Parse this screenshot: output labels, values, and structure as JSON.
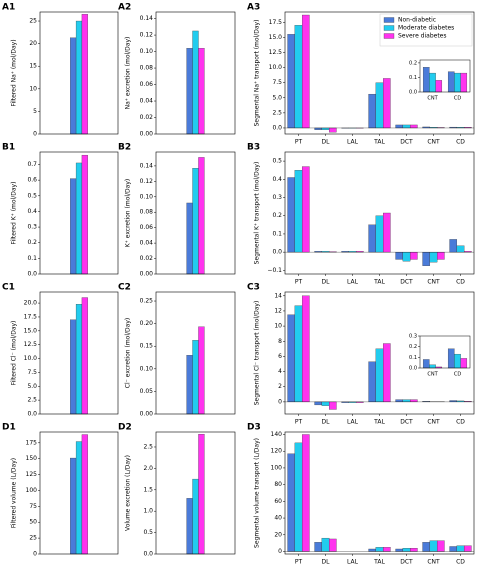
{
  "chart_data": [
    {
      "type": "bar",
      "panel_label": "A1",
      "ylabel": "Filtered Na⁺ (mol/Day)",
      "ylim": [
        0,
        27
      ],
      "yticks": [
        0,
        5,
        10,
        15,
        20,
        25
      ],
      "series": [
        {
          "color": "#4a7bd9",
          "values": [
            21.3
          ]
        },
        {
          "color": "#22ccee",
          "values": [
            25
          ]
        },
        {
          "color": "#ff33ee",
          "values": [
            26.5
          ]
        }
      ]
    },
    {
      "type": "bar",
      "panel_label": "A2",
      "ylabel": "Na⁺ excretion (mol/Day)",
      "ylim": [
        0,
        0.148
      ],
      "yticks": [
        {
          "value": 0,
          "label": "0.00"
        },
        {
          "value": 0.02,
          "label": "0.02"
        },
        {
          "value": 0.04,
          "label": "0.04"
        },
        {
          "value": 0.06,
          "label": "0.06"
        },
        {
          "value": 0.08,
          "label": "0.08"
        },
        {
          "value": 0.1,
          "label": "0.10"
        },
        {
          "value": 0.12,
          "label": "0.12"
        },
        {
          "value": 0.14,
          "label": "0.14"
        }
      ],
      "series": [
        {
          "color": "#4a7bd9",
          "values": [
            0.104
          ]
        },
        {
          "color": "#22ccee",
          "values": [
            0.125
          ]
        },
        {
          "color": "#ff33ee",
          "values": [
            0.104
          ]
        }
      ]
    },
    {
      "type": "bar",
      "panel_label": "A3",
      "ylabel": "Segmental Na⁺ transport (mol/Day)",
      "ylim": [
        -1,
        19.2
      ],
      "yticks": [
        {
          "value": 0,
          "label": "0.0"
        },
        {
          "value": 2.5,
          "label": "2.5"
        },
        {
          "value": 5,
          "label": "5.0"
        },
        {
          "value": 7.5,
          "label": "7.5"
        },
        {
          "value": 10,
          "label": "10.0"
        },
        {
          "value": 12.5,
          "label": "12.5"
        },
        {
          "value": 15,
          "label": "15.0"
        },
        {
          "value": 17.5,
          "label": "17.5"
        }
      ],
      "categories": [
        "PT",
        "DL",
        "LAL",
        "TAL",
        "DCT",
        "CNT",
        "CD"
      ],
      "legend": "upper right",
      "series": [
        {
          "name": "Non-diabetic",
          "color": "#4a7bd9",
          "values": [
            15.5,
            -0.3,
            -0.05,
            5.6,
            0.5,
            0.17,
            0.14
          ]
        },
        {
          "name": "Moderate diabetes",
          "color": "#22ccee",
          "values": [
            17.0,
            -0.3,
            -0.05,
            7.5,
            0.5,
            0.13,
            0.13
          ]
        },
        {
          "name": "Severe diabetes",
          "color": "#ff33ee",
          "values": [
            18.7,
            -0.7,
            -0.05,
            8.2,
            0.5,
            0.08,
            0.13
          ]
        }
      ],
      "inset": {
        "categories": [
          "CNT",
          "CD"
        ],
        "ylim": [
          0,
          0.22
        ],
        "yticks": [
          {
            "value": 0,
            "label": "0.0"
          },
          {
            "value": 0.1,
            "label": "0.1"
          },
          {
            "value": 0.2,
            "label": "0.2"
          }
        ]
      }
    },
    {
      "type": "bar",
      "panel_label": "B1",
      "ylabel": "Filtered K⁺ (mol/Day)",
      "ylim": [
        0,
        0.78
      ],
      "yticks": [
        {
          "value": 0,
          "label": "0.0"
        },
        {
          "value": 0.1,
          "label": "0.1"
        },
        {
          "value": 0.2,
          "label": "0.2"
        },
        {
          "value": 0.3,
          "label": "0.3"
        },
        {
          "value": 0.4,
          "label": "0.4"
        },
        {
          "value": 0.5,
          "label": "0.5"
        },
        {
          "value": 0.6,
          "label": "0.6"
        },
        {
          "value": 0.7,
          "label": "0.7"
        }
      ],
      "series": [
        {
          "color": "#4a7bd9",
          "values": [
            0.61
          ]
        },
        {
          "color": "#22ccee",
          "values": [
            0.71
          ]
        },
        {
          "color": "#ff33ee",
          "values": [
            0.76
          ]
        }
      ]
    },
    {
      "type": "bar",
      "panel_label": "B2",
      "ylabel": "K⁺ excretion (mol/Day)",
      "ylim": [
        0,
        0.158
      ],
      "yticks": [
        {
          "value": 0,
          "label": "0.00"
        },
        {
          "value": 0.02,
          "label": "0.02"
        },
        {
          "value": 0.04,
          "label": "0.04"
        },
        {
          "value": 0.06,
          "label": "0.06"
        },
        {
          "value": 0.08,
          "label": "0.08"
        },
        {
          "value": 0.1,
          "label": "0.10"
        },
        {
          "value": 0.12,
          "label": "0.12"
        },
        {
          "value": 0.14,
          "label": "0.14"
        }
      ],
      "series": [
        {
          "color": "#4a7bd9",
          "values": [
            0.092
          ]
        },
        {
          "color": "#22ccee",
          "values": [
            0.137
          ]
        },
        {
          "color": "#ff33ee",
          "values": [
            0.151
          ]
        }
      ]
    },
    {
      "type": "bar",
      "panel_label": "B3",
      "ylabel": "Segmental K⁺ transport (mol/Day)",
      "ylim": [
        -0.12,
        0.55
      ],
      "yticks": [
        {
          "value": -0.1,
          "label": "−0.1"
        },
        {
          "value": 0,
          "label": "0.0"
        },
        {
          "value": 0.1,
          "label": "0.1"
        },
        {
          "value": 0.2,
          "label": "0.2"
        },
        {
          "value": 0.3,
          "label": "0.3"
        },
        {
          "value": 0.4,
          "label": "0.4"
        },
        {
          "value": 0.5,
          "label": "0.5"
        }
      ],
      "categories": [
        "PT",
        "DL",
        "LAL",
        "TAL",
        "DCT",
        "CNT",
        "CD"
      ],
      "series": [
        {
          "color": "#4a7bd9",
          "values": [
            0.41,
            0.005,
            0.005,
            0.15,
            -0.04,
            -0.075,
            0.07
          ]
        },
        {
          "color": "#22ccee",
          "values": [
            0.45,
            0.005,
            0.005,
            0.2,
            -0.05,
            -0.055,
            0.035
          ]
        },
        {
          "color": "#ff33ee",
          "values": [
            0.47,
            0.003,
            0.005,
            0.215,
            -0.04,
            -0.04,
            0.005
          ]
        }
      ]
    },
    {
      "type": "bar",
      "panel_label": "C1",
      "ylabel": "Filtered Cl⁻ (mol/Day)",
      "ylim": [
        0,
        22
      ],
      "yticks": [
        {
          "value": 0,
          "label": "0.0"
        },
        {
          "value": 2.5,
          "label": "2.5"
        },
        {
          "value": 5,
          "label": "5.0"
        },
        {
          "value": 7.5,
          "label": "7.5"
        },
        {
          "value": 10,
          "label": "10.0"
        },
        {
          "value": 12.5,
          "label": "12.5"
        },
        {
          "value": 15,
          "label": "15.0"
        },
        {
          "value": 17.5,
          "label": "17.5"
        },
        {
          "value": 20,
          "label": "20.0"
        }
      ],
      "series": [
        {
          "color": "#4a7bd9",
          "values": [
            17
          ]
        },
        {
          "color": "#22ccee",
          "values": [
            19.8
          ]
        },
        {
          "color": "#ff33ee",
          "values": [
            21
          ]
        }
      ]
    },
    {
      "type": "bar",
      "panel_label": "C2",
      "ylabel": "Cl⁻ excretion (mol/Day)",
      "ylim": [
        0,
        0.27
      ],
      "yticks": [
        {
          "value": 0,
          "label": "0.00"
        },
        {
          "value": 0.05,
          "label": "0.05"
        },
        {
          "value": 0.1,
          "label": "0.10"
        },
        {
          "value": 0.15,
          "label": "0.15"
        },
        {
          "value": 0.2,
          "label": "0.20"
        },
        {
          "value": 0.25,
          "label": "0.25"
        }
      ],
      "series": [
        {
          "color": "#4a7bd9",
          "values": [
            0.13
          ]
        },
        {
          "color": "#22ccee",
          "values": [
            0.163
          ]
        },
        {
          "color": "#ff33ee",
          "values": [
            0.193
          ]
        }
      ]
    },
    {
      "type": "bar",
      "panel_label": "C3",
      "ylabel": "Segmental Cl⁻ transport (mol/Day)",
      "ylim": [
        -1.6,
        14.5
      ],
      "yticks": [
        0,
        2,
        4,
        6,
        8,
        10,
        12,
        14
      ],
      "categories": [
        "PT",
        "DL",
        "LAL",
        "TAL",
        "DCT",
        "CNT",
        "CD"
      ],
      "series": [
        {
          "color": "#4a7bd9",
          "values": [
            11.5,
            -0.4,
            -0.1,
            5.3,
            0.3,
            0.08,
            0.18
          ]
        },
        {
          "color": "#22ccee",
          "values": [
            12.7,
            -0.5,
            -0.1,
            7.0,
            0.3,
            0.03,
            0.13
          ]
        },
        {
          "color": "#ff33ee",
          "values": [
            14.0,
            -1.0,
            -0.1,
            7.7,
            0.3,
            0.01,
            0.09
          ]
        }
      ],
      "inset": {
        "categories": [
          "CNT",
          "CD"
        ],
        "ylim": [
          0,
          0.3
        ],
        "yticks": [
          {
            "value": 0,
            "label": "0.0"
          },
          {
            "value": 0.1,
            "label": "0.1"
          },
          {
            "value": 0.2,
            "label": "0.2"
          },
          {
            "value": 0.3,
            "label": "0.3"
          }
        ]
      }
    },
    {
      "type": "bar",
      "panel_label": "D1",
      "ylabel": "Filtered volume (L/Day)",
      "ylim": [
        0,
        192
      ],
      "yticks": [
        0,
        25,
        50,
        75,
        100,
        125,
        150,
        175
      ],
      "series": [
        {
          "color": "#4a7bd9",
          "values": [
            151
          ]
        },
        {
          "color": "#22ccee",
          "values": [
            177
          ]
        },
        {
          "color": "#ff33ee",
          "values": [
            188
          ]
        }
      ]
    },
    {
      "type": "bar",
      "panel_label": "D2",
      "ylabel": "Volume excretion (L/Day)",
      "ylim": [
        0,
        2.85
      ],
      "yticks": [
        {
          "value": 0,
          "label": "0.0"
        },
        {
          "value": 0.5,
          "label": "0.5"
        },
        {
          "value": 1,
          "label": "1.0"
        },
        {
          "value": 1.5,
          "label": "1.5"
        },
        {
          "value": 2,
          "label": "2.0"
        },
        {
          "value": 2.5,
          "label": "2.5"
        }
      ],
      "series": [
        {
          "color": "#4a7bd9",
          "values": [
            1.3
          ]
        },
        {
          "color": "#22ccee",
          "values": [
            1.75
          ]
        },
        {
          "color": "#ff33ee",
          "values": [
            2.8
          ]
        }
      ]
    },
    {
      "type": "bar",
      "panel_label": "D3",
      "ylabel": "Segmental volume transport (L/Day)",
      "ylim": [
        -3,
        143
      ],
      "yticks": [
        0,
        20,
        40,
        60,
        80,
        100,
        120,
        140
      ],
      "categories": [
        "PT",
        "DL",
        "LAL",
        "TAL",
        "DCT",
        "CNT",
        "CD"
      ],
      "series": [
        {
          "color": "#4a7bd9",
          "values": [
            117,
            11,
            0,
            3,
            3,
            11,
            6
          ]
        },
        {
          "color": "#22ccee",
          "values": [
            130,
            16,
            0,
            5,
            4,
            13,
            7
          ]
        },
        {
          "color": "#ff33ee",
          "values": [
            140,
            15,
            0,
            5,
            4,
            13,
            7
          ]
        }
      ]
    }
  ]
}
